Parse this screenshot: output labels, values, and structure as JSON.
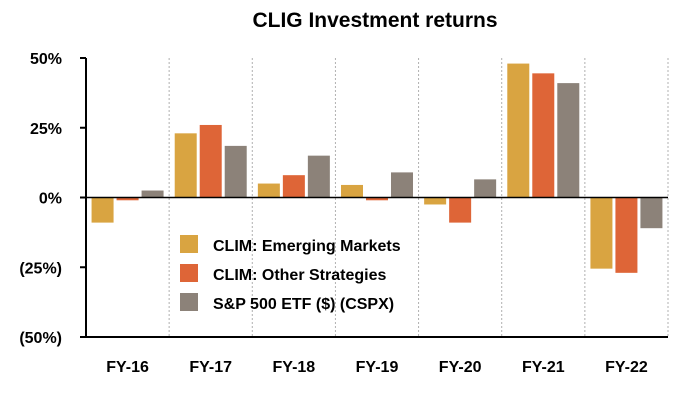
{
  "chart_data": {
    "type": "bar",
    "title": "CLIG Investment returns",
    "categories": [
      "FY-16",
      "FY-17",
      "FY-18",
      "FY-19",
      "FY-20",
      "FY-21",
      "FY-22"
    ],
    "series": [
      {
        "name": "CLIM: Emerging Markets",
        "color": "#D9A441",
        "values": [
          -9,
          23,
          5,
          4.5,
          -2.5,
          48,
          -25.5
        ]
      },
      {
        "name": "CLIM: Other Strategies",
        "color": "#DE6537",
        "values": [
          -1,
          26,
          8,
          -1,
          -9,
          44.5,
          -27
        ]
      },
      {
        "name": "S&P 500 ETF ($) (CSPX)",
        "color": "#8C8279",
        "values": [
          2.5,
          18.5,
          15,
          9,
          6.5,
          41,
          -11
        ]
      }
    ],
    "yticks": [
      "50%",
      "25%",
      "0%",
      "(25%)",
      "(50%)"
    ],
    "ytick_values": [
      50,
      25,
      0,
      -25,
      -50
    ],
    "ylim": [
      -50,
      50
    ],
    "xlabel": "",
    "ylabel": "",
    "grid": "vertical-dotted",
    "legend_placement": "lower-center"
  }
}
